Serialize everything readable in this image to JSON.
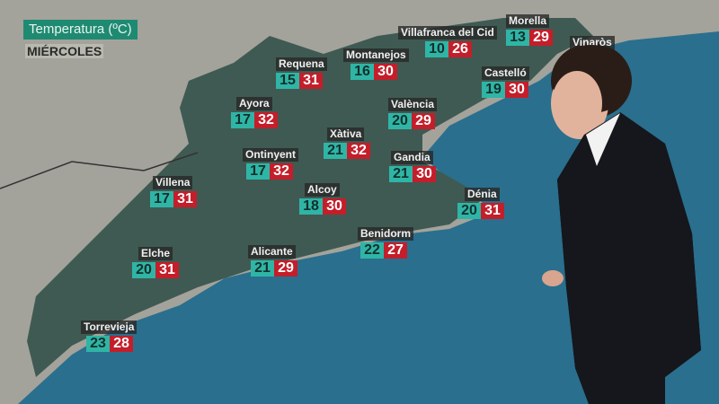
{
  "title": "Temperatura (ºC)",
  "day": "MIÉRCOLES",
  "colors": {
    "min": "#2fb5a6",
    "max": "#c41e2a",
    "title_bg": "#1f8a72",
    "sea": "#2a6f8e",
    "region": "#3f5a52"
  },
  "cities": [
    {
      "name": "Villafranca del Cid",
      "min": "10",
      "max": "26"
    },
    {
      "name": "Morella",
      "min": "13",
      "max": "29"
    },
    {
      "name": "Vinaròs",
      "min": "",
      "max": ""
    },
    {
      "name": "Montanejos",
      "min": "16",
      "max": "30"
    },
    {
      "name": "Requena",
      "min": "15",
      "max": "31"
    },
    {
      "name": "Castelló",
      "min": "19",
      "max": "30"
    },
    {
      "name": "Ayora",
      "min": "17",
      "max": "32"
    },
    {
      "name": "València",
      "min": "20",
      "max": "29"
    },
    {
      "name": "Xàtiva",
      "min": "21",
      "max": "32"
    },
    {
      "name": "Ontinyent",
      "min": "17",
      "max": "32"
    },
    {
      "name": "Gandia",
      "min": "21",
      "max": "30"
    },
    {
      "name": "Villena",
      "min": "17",
      "max": "31"
    },
    {
      "name": "Alcoy",
      "min": "18",
      "max": "30"
    },
    {
      "name": "Dénia",
      "min": "20",
      "max": "31"
    },
    {
      "name": "Benidorm",
      "min": "22",
      "max": "27"
    },
    {
      "name": "Alicante",
      "min": "21",
      "max": "29"
    },
    {
      "name": "Elche",
      "min": "20",
      "max": "31"
    },
    {
      "name": "Torrevieja",
      "min": "23",
      "max": "28"
    }
  ]
}
